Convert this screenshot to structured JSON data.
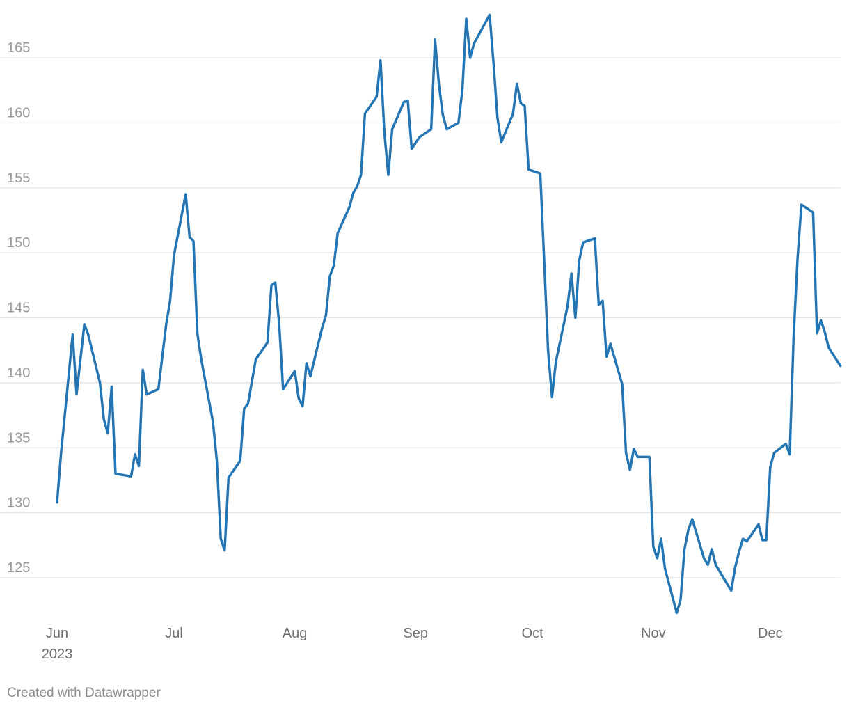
{
  "footer": {
    "credit": "Created with Datawrapper"
  },
  "colors": {
    "line": "#2375b3",
    "grid": "#e2e2e2",
    "tick_text": "#9a9a9a",
    "axis_text": "#6e6e6e"
  },
  "chart_data": {
    "type": "line",
    "title": "",
    "xlabel": "",
    "ylabel": "",
    "grid": "horizontal",
    "xlim": [
      "2023-05-30",
      "2023-12-20"
    ],
    "ylim": [
      122,
      169
    ],
    "y_ticks": [
      125,
      130,
      135,
      140,
      145,
      150,
      155,
      160,
      165
    ],
    "x_ticks": [
      {
        "date": "2023-06-01",
        "label": "Jun",
        "sublabel": "2023"
      },
      {
        "date": "2023-07-01",
        "label": "Jul"
      },
      {
        "date": "2023-08-01",
        "label": "Aug"
      },
      {
        "date": "2023-09-01",
        "label": "Sep"
      },
      {
        "date": "2023-10-01",
        "label": "Oct"
      },
      {
        "date": "2023-11-01",
        "label": "Nov"
      },
      {
        "date": "2023-12-01",
        "label": "Dec"
      }
    ],
    "series": [
      {
        "points": [
          [
            "2023-06-01",
            130.8
          ],
          [
            "2023-06-02",
            134.5
          ],
          [
            "2023-06-05",
            143.7
          ],
          [
            "2023-06-06",
            139.1
          ],
          [
            "2023-06-07",
            141.8
          ],
          [
            "2023-06-08",
            144.5
          ],
          [
            "2023-06-09",
            143.7
          ],
          [
            "2023-06-12",
            140.0
          ],
          [
            "2023-06-13",
            137.2
          ],
          [
            "2023-06-14",
            136.1
          ],
          [
            "2023-06-15",
            139.7
          ],
          [
            "2023-06-16",
            133.0
          ],
          [
            "2023-06-20",
            132.8
          ],
          [
            "2023-06-21",
            134.5
          ],
          [
            "2023-06-22",
            133.6
          ],
          [
            "2023-06-23",
            141.0
          ],
          [
            "2023-06-24",
            139.1
          ],
          [
            "2023-06-27",
            139.5
          ],
          [
            "2023-06-29",
            144.5
          ],
          [
            "2023-06-30",
            146.3
          ],
          [
            "2023-07-01",
            149.8
          ],
          [
            "2023-07-04",
            154.5
          ],
          [
            "2023-07-05",
            151.2
          ],
          [
            "2023-07-06",
            150.9
          ],
          [
            "2023-07-07",
            143.8
          ],
          [
            "2023-07-08",
            141.8
          ],
          [
            "2023-07-11",
            137.0
          ],
          [
            "2023-07-12",
            134.0
          ],
          [
            "2023-07-13",
            128.0
          ],
          [
            "2023-07-14",
            127.1
          ],
          [
            "2023-07-15",
            132.7
          ],
          [
            "2023-07-18",
            134.0
          ],
          [
            "2023-07-19",
            138.0
          ],
          [
            "2023-07-20",
            138.4
          ],
          [
            "2023-07-22",
            141.8
          ],
          [
            "2023-07-25",
            143.1
          ],
          [
            "2023-07-26",
            147.5
          ],
          [
            "2023-07-27",
            147.7
          ],
          [
            "2023-07-28",
            144.5
          ],
          [
            "2023-07-29",
            139.5
          ],
          [
            "2023-08-01",
            140.9
          ],
          [
            "2023-08-02",
            138.8
          ],
          [
            "2023-08-03",
            138.2
          ],
          [
            "2023-08-04",
            141.5
          ],
          [
            "2023-08-05",
            140.5
          ],
          [
            "2023-08-08",
            144.2
          ],
          [
            "2023-08-09",
            145.2
          ],
          [
            "2023-08-10",
            148.2
          ],
          [
            "2023-08-11",
            149.0
          ],
          [
            "2023-08-12",
            151.5
          ],
          [
            "2023-08-15",
            153.5
          ],
          [
            "2023-08-16",
            154.6
          ],
          [
            "2023-08-17",
            155.1
          ],
          [
            "2023-08-18",
            156.0
          ],
          [
            "2023-08-19",
            160.7
          ],
          [
            "2023-08-22",
            162.0
          ],
          [
            "2023-08-23",
            164.8
          ],
          [
            "2023-08-24",
            159.2
          ],
          [
            "2023-08-25",
            156.0
          ],
          [
            "2023-08-26",
            159.5
          ],
          [
            "2023-08-29",
            161.6
          ],
          [
            "2023-08-30",
            161.7
          ],
          [
            "2023-08-31",
            158.0
          ],
          [
            "2023-09-02",
            158.9
          ],
          [
            "2023-09-05",
            159.5
          ],
          [
            "2023-09-06",
            166.4
          ],
          [
            "2023-09-07",
            162.9
          ],
          [
            "2023-09-08",
            160.6
          ],
          [
            "2023-09-09",
            159.5
          ],
          [
            "2023-09-12",
            160.0
          ],
          [
            "2023-09-13",
            162.5
          ],
          [
            "2023-09-14",
            168.0
          ],
          [
            "2023-09-15",
            165.0
          ],
          [
            "2023-09-16",
            166.1
          ],
          [
            "2023-09-20",
            168.3
          ],
          [
            "2023-09-21",
            164.6
          ],
          [
            "2023-09-22",
            160.4
          ],
          [
            "2023-09-23",
            158.5
          ],
          [
            "2023-09-26",
            160.7
          ],
          [
            "2023-09-27",
            163.0
          ],
          [
            "2023-09-28",
            161.5
          ],
          [
            "2023-09-29",
            161.3
          ],
          [
            "2023-09-30",
            156.4
          ],
          [
            "2023-10-03",
            156.1
          ],
          [
            "2023-10-04",
            149.4
          ],
          [
            "2023-10-05",
            142.5
          ],
          [
            "2023-10-06",
            138.9
          ],
          [
            "2023-10-07",
            141.6
          ],
          [
            "2023-10-10",
            145.9
          ],
          [
            "2023-10-11",
            148.4
          ],
          [
            "2023-10-12",
            145.0
          ],
          [
            "2023-10-13",
            149.4
          ],
          [
            "2023-10-14",
            150.8
          ],
          [
            "2023-10-17",
            151.1
          ],
          [
            "2023-10-18",
            146.0
          ],
          [
            "2023-10-19",
            146.3
          ],
          [
            "2023-10-20",
            142.0
          ],
          [
            "2023-10-21",
            143.0
          ],
          [
            "2023-10-24",
            139.9
          ],
          [
            "2023-10-25",
            134.6
          ],
          [
            "2023-10-26",
            133.3
          ],
          [
            "2023-10-27",
            134.9
          ],
          [
            "2023-10-28",
            134.3
          ],
          [
            "2023-10-31",
            134.3
          ],
          [
            "2023-11-01",
            127.4
          ],
          [
            "2023-11-02",
            126.5
          ],
          [
            "2023-11-03",
            128.0
          ],
          [
            "2023-11-04",
            125.7
          ],
          [
            "2023-11-07",
            122.3
          ],
          [
            "2023-11-08",
            123.3
          ],
          [
            "2023-11-09",
            127.2
          ],
          [
            "2023-11-10",
            128.7
          ],
          [
            "2023-11-11",
            129.5
          ],
          [
            "2023-11-14",
            126.5
          ],
          [
            "2023-11-15",
            126.0
          ],
          [
            "2023-11-16",
            127.2
          ],
          [
            "2023-11-17",
            126.0
          ],
          [
            "2023-11-21",
            124.0
          ],
          [
            "2023-11-22",
            125.8
          ],
          [
            "2023-11-23",
            127.0
          ],
          [
            "2023-11-24",
            128.0
          ],
          [
            "2023-11-25",
            127.8
          ],
          [
            "2023-11-28",
            129.1
          ],
          [
            "2023-11-29",
            127.9
          ],
          [
            "2023-11-30",
            127.9
          ],
          [
            "2023-12-01",
            133.5
          ],
          [
            "2023-12-02",
            134.6
          ],
          [
            "2023-12-05",
            135.3
          ],
          [
            "2023-12-06",
            134.5
          ],
          [
            "2023-12-07",
            143.5
          ],
          [
            "2023-12-08",
            149.5
          ],
          [
            "2023-12-09",
            153.7
          ],
          [
            "2023-12-12",
            153.1
          ],
          [
            "2023-12-13",
            143.8
          ],
          [
            "2023-12-14",
            144.8
          ],
          [
            "2023-12-15",
            143.9
          ],
          [
            "2023-12-16",
            142.7
          ],
          [
            "2023-12-19",
            141.3
          ]
        ]
      }
    ]
  }
}
